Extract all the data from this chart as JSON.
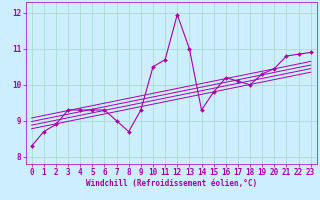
{
  "xlabel": "Windchill (Refroidissement éolien,°C)",
  "bg_color": "#cceeff",
  "grid_color": "#aaddcc",
  "line_color": "#aa00aa",
  "xlim": [
    -0.5,
    23.5
  ],
  "ylim": [
    7.8,
    12.3
  ],
  "xticks": [
    0,
    1,
    2,
    3,
    4,
    5,
    6,
    7,
    8,
    9,
    10,
    11,
    12,
    13,
    14,
    15,
    16,
    17,
    18,
    19,
    20,
    21,
    22,
    23
  ],
  "yticks": [
    8,
    9,
    10,
    11,
    12
  ],
  "x_data": [
    0,
    1,
    2,
    3,
    4,
    5,
    6,
    7,
    8,
    9,
    10,
    11,
    12,
    13,
    14,
    15,
    16,
    17,
    18,
    19,
    20,
    21,
    22,
    23
  ],
  "y_main": [
    8.3,
    8.7,
    8.9,
    9.3,
    9.3,
    9.3,
    9.3,
    9.0,
    8.7,
    9.3,
    10.5,
    10.7,
    11.95,
    11.0,
    9.3,
    9.8,
    10.2,
    10.1,
    10.0,
    10.3,
    10.45,
    10.8,
    10.85,
    10.9
  ],
  "reg_lines": [
    {
      "x": [
        0,
        23
      ],
      "y": [
        8.78,
        10.35
      ]
    },
    {
      "x": [
        0,
        23
      ],
      "y": [
        8.88,
        10.45
      ]
    },
    {
      "x": [
        0,
        23
      ],
      "y": [
        8.98,
        10.55
      ]
    },
    {
      "x": [
        0,
        23
      ],
      "y": [
        9.08,
        10.65
      ]
    }
  ],
  "xlabel_fontsize": 5.5,
  "tick_fontsize": 5.5
}
